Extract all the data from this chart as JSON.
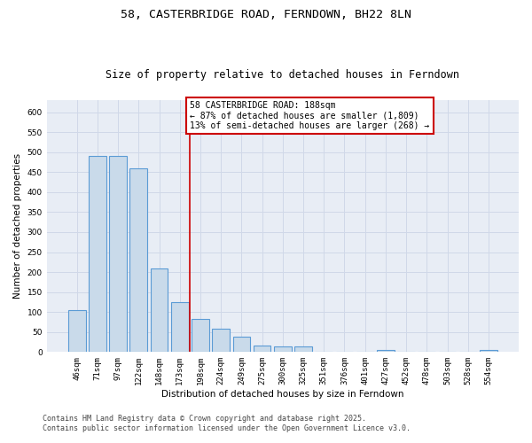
{
  "title_line1": "58, CASTERBRIDGE ROAD, FERNDOWN, BH22 8LN",
  "title_line2": "Size of property relative to detached houses in Ferndown",
  "xlabel": "Distribution of detached houses by size in Ferndown",
  "ylabel": "Number of detached properties",
  "categories": [
    "46sqm",
    "71sqm",
    "97sqm",
    "122sqm",
    "148sqm",
    "173sqm",
    "198sqm",
    "224sqm",
    "249sqm",
    "275sqm",
    "300sqm",
    "325sqm",
    "351sqm",
    "376sqm",
    "401sqm",
    "427sqm",
    "452sqm",
    "478sqm",
    "503sqm",
    "528sqm",
    "554sqm"
  ],
  "values": [
    105,
    490,
    490,
    460,
    208,
    125,
    82,
    58,
    38,
    16,
    13,
    13,
    0,
    0,
    0,
    6,
    0,
    0,
    0,
    0,
    6
  ],
  "bar_color": "#c9daea",
  "bar_edge_color": "#5b9bd5",
  "bar_edge_width": 0.8,
  "vline_color": "#cc0000",
  "annotation_text": "58 CASTERBRIDGE ROAD: 188sqm\n← 87% of detached houses are smaller (1,809)\n13% of semi-detached houses are larger (268) →",
  "annotation_box_color": "#ffffff",
  "annotation_box_edge_color": "#cc0000",
  "ylim": [
    0,
    630
  ],
  "yticks": [
    0,
    50,
    100,
    150,
    200,
    250,
    300,
    350,
    400,
    450,
    500,
    550,
    600
  ],
  "grid_color": "#d0d8e8",
  "bg_color": "#e8edf5",
  "footer_line1": "Contains HM Land Registry data © Crown copyright and database right 2025.",
  "footer_line2": "Contains public sector information licensed under the Open Government Licence v3.0.",
  "title_fontsize": 9.5,
  "subtitle_fontsize": 8.5,
  "axis_label_fontsize": 7.5,
  "tick_fontsize": 6.5,
  "annotation_fontsize": 7,
  "footer_fontsize": 6
}
